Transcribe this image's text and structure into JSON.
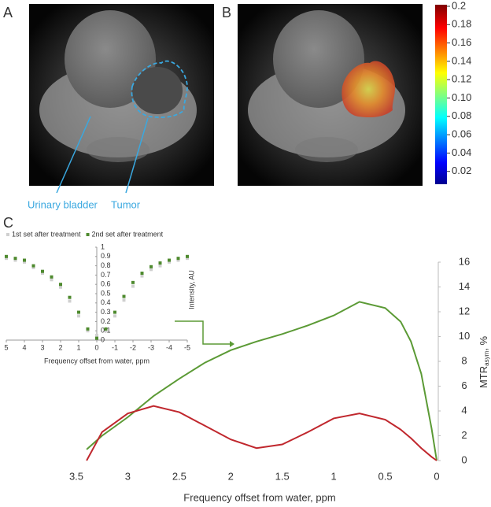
{
  "panel_labels": [
    "A",
    "B",
    "C"
  ],
  "annotations": [
    "Urinary bladder",
    "Tumor"
  ],
  "chart_data": [
    {
      "type": "colorbar",
      "colormap": "jet",
      "ylim": [
        0,
        0.2
      ],
      "yticks": [
        0.2,
        0.18,
        0.16,
        0.14,
        0.12,
        {
          "value": 0.1,
          "label": "0.10"
        },
        0.08,
        0.06,
        0.04,
        0.02
      ]
    },
    {
      "type": "scatter",
      "x": [
        5,
        4.5,
        4,
        3.5,
        3,
        2.5,
        2,
        1.5,
        1,
        0.5,
        0,
        -0.5,
        -1,
        -1.5,
        -2,
        -2.5,
        -3,
        -3.5,
        -4,
        -4.5,
        -5
      ],
      "series": [
        {
          "name": "1st set after treatment",
          "color": "#d0d0d0",
          "values": [
            0.88,
            0.86,
            0.84,
            0.78,
            0.72,
            0.65,
            0.57,
            0.42,
            0.26,
            0.1,
            0.05,
            0.1,
            0.26,
            0.43,
            0.58,
            0.69,
            0.76,
            0.8,
            0.84,
            0.86,
            0.88
          ]
        },
        {
          "name": "2nd set after treatment",
          "color": "#4e8a2e",
          "values": [
            0.9,
            0.88,
            0.86,
            0.8,
            0.74,
            0.68,
            0.6,
            0.46,
            0.3,
            0.12,
            0.02,
            0.12,
            0.3,
            0.47,
            0.62,
            0.72,
            0.79,
            0.83,
            0.86,
            0.88,
            0.9
          ]
        }
      ],
      "xlim": [
        5,
        -5
      ],
      "xticks": [
        5,
        4,
        3,
        2,
        1,
        0,
        -1,
        -2,
        -3,
        -4,
        -5
      ],
      "ylim": [
        0,
        1
      ],
      "yticks": [
        0,
        0.1,
        0.2,
        0.3,
        0.4,
        0.5,
        0.6,
        0.7,
        0.8,
        0.9,
        1
      ],
      "x_label": "Frequency offset from water, ppm",
      "y_label": "Intensity, AU"
    },
    {
      "type": "line",
      "x": [
        3.4,
        3.25,
        3,
        2.75,
        2.5,
        2.25,
        2,
        1.75,
        1.5,
        1.25,
        1,
        0.75,
        0.5,
        0.35,
        0.25,
        0.15,
        0.05,
        0
      ],
      "series": [
        {
          "color": "#5b9a35",
          "values": [
            0.9,
            2,
            3.5,
            5.2,
            6.6,
            7.9,
            8.9,
            9.6,
            10.2,
            10.9,
            11.7,
            12.8,
            12.3,
            11.2,
            9.6,
            7,
            2.6,
            0
          ]
        },
        {
          "color": "#c0272d",
          "values": [
            0,
            2.3,
            3.8,
            4.4,
            3.9,
            2.8,
            1.7,
            1.0,
            1.3,
            2.3,
            3.4,
            3.8,
            3.3,
            2.5,
            1.8,
            1.0,
            0.3,
            0
          ]
        }
      ],
      "xlim": [
        3.5,
        0
      ],
      "xticks": [
        3.5,
        3,
        2.5,
        2,
        1.5,
        1,
        0.5,
        0
      ],
      "ylim": [
        0,
        16
      ],
      "yticks": [
        0,
        2,
        4,
        6,
        8,
        10,
        12,
        14,
        16
      ],
      "y_axis_side": "right",
      "x_label": "Frequency offset from water, ppm",
      "y_label": [
        "MTR",
        "asym",
        ", %"
      ]
    }
  ]
}
